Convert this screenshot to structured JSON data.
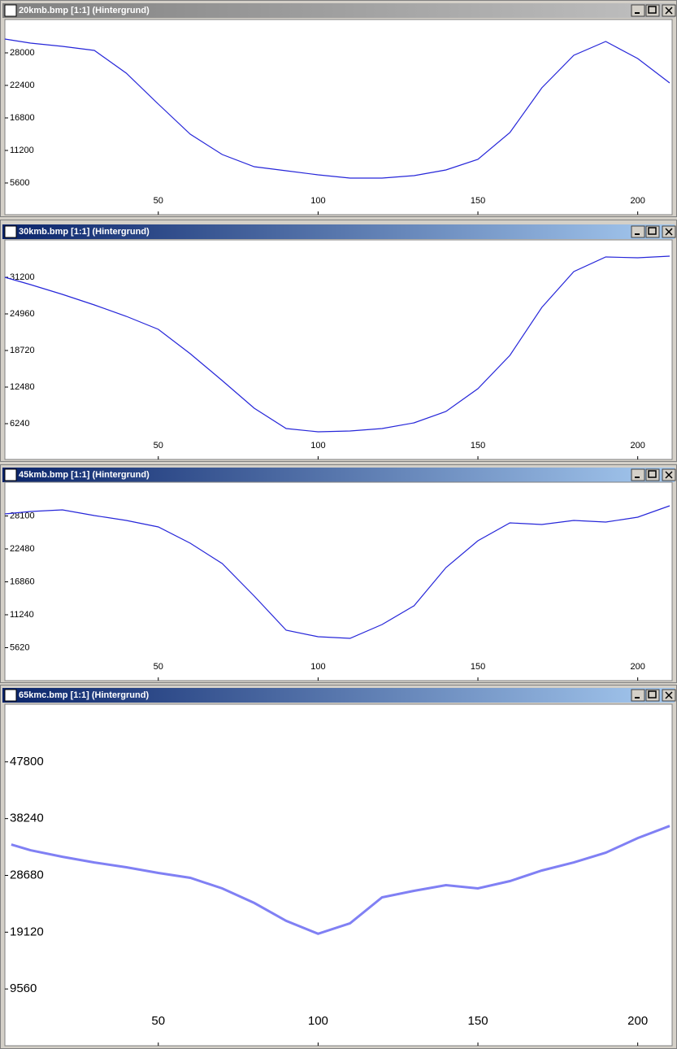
{
  "chart_data": [
    {
      "type": "line",
      "title": "20kmb.bmp [1:1] (Hintergrund)",
      "active": false,
      "color": "#2626d9",
      "x": [
        2,
        10,
        20,
        30,
        40,
        50,
        60,
        70,
        80,
        90,
        100,
        110,
        120,
        130,
        140,
        150,
        160,
        170,
        180,
        190,
        200,
        210
      ],
      "values": [
        30380,
        29680,
        29120,
        28420,
        24500,
        19180,
        14000,
        10500,
        8400,
        7700,
        7000,
        6440,
        6440,
        6860,
        7840,
        9660,
        14280,
        21980,
        27580,
        29960,
        27020,
        22820
      ],
      "xlim": [
        2,
        210
      ],
      "ylim": [
        0,
        33600
      ],
      "xticks": [
        50,
        100,
        150,
        200
      ],
      "yticks": [
        5600,
        11200,
        16800,
        22400,
        28000
      ]
    },
    {
      "type": "line",
      "title": "30kmb.bmp [1:1] (Hintergrund)",
      "active": true,
      "color": "#2626d9",
      "x": [
        2,
        10,
        20,
        30,
        40,
        50,
        60,
        70,
        80,
        90,
        100,
        110,
        120,
        130,
        140,
        150,
        160,
        170,
        180,
        190,
        200,
        210
      ],
      "values": [
        31200,
        29950,
        28290,
        26490,
        24540,
        22330,
        18170,
        13590,
        8880,
        5410,
        4850,
        4990,
        5410,
        6380,
        8320,
        12200,
        17890,
        26070,
        32170,
        34670,
        34530,
        34810
      ],
      "xlim": [
        2,
        210
      ],
      "ylim": [
        0,
        37440
      ],
      "xticks": [
        50,
        100,
        150,
        200
      ],
      "yticks": [
        6240,
        12480,
        18720,
        24960,
        31200
      ]
    },
    {
      "type": "line",
      "title": "45kmb.bmp [1:1] (Hintergrund)",
      "active": true,
      "color": "#2626d9",
      "x": [
        2,
        10,
        20,
        30,
        40,
        50,
        60,
        70,
        80,
        90,
        100,
        110,
        120,
        130,
        140,
        150,
        160,
        170,
        180,
        190,
        200,
        210
      ],
      "values": [
        28450,
        28860,
        29140,
        28170,
        27340,
        26230,
        23450,
        19980,
        14430,
        8600,
        7490,
        7220,
        9570,
        12760,
        19290,
        23870,
        26920,
        26640,
        27340,
        27060,
        27890,
        29840
      ],
      "xlim": [
        2,
        210
      ],
      "ylim": [
        0,
        33720
      ],
      "xticks": [
        50,
        100,
        150,
        200
      ],
      "yticks": [
        5620,
        11240,
        16860,
        22480,
        28100
      ]
    },
    {
      "type": "line",
      "title": "65kmc.bmp [1:1] (Hintergrund)",
      "active": true,
      "color": "#8080f4",
      "x": [
        4,
        10,
        20,
        30,
        40,
        50,
        60,
        70,
        80,
        90,
        100,
        110,
        120,
        130,
        140,
        150,
        160,
        170,
        180,
        190,
        200,
        210
      ],
      "values": [
        33870,
        32910,
        31820,
        30860,
        30050,
        29090,
        28270,
        26490,
        24040,
        21030,
        18850,
        20620,
        24990,
        26080,
        27040,
        26490,
        27720,
        29500,
        30860,
        32500,
        34960,
        37010
      ],
      "xlim": [
        2,
        210
      ],
      "ylim": [
        0,
        57360
      ],
      "xticks": [
        50,
        100,
        150,
        200
      ],
      "yticks": [
        9560,
        19120,
        28680,
        38240,
        47800
      ]
    }
  ]
}
